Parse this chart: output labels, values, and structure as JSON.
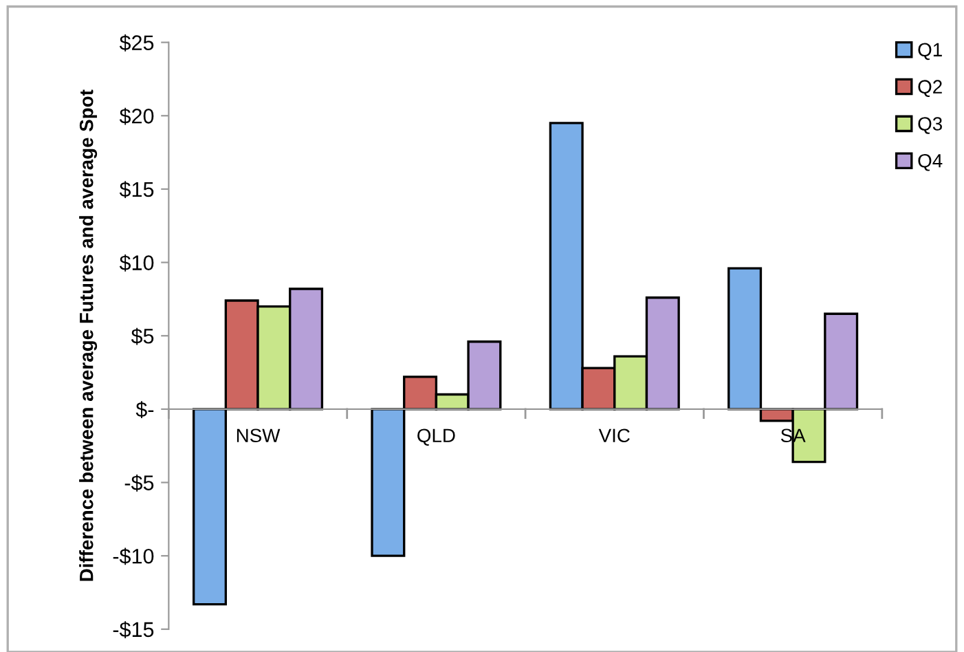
{
  "chart_data": {
    "type": "bar",
    "ylabel": "Difference between average Futures and average Spot",
    "categories": [
      "NSW",
      "QLD",
      "VIC",
      "SA"
    ],
    "series": [
      {
        "name": "Q1",
        "color": "#7aaee8",
        "values": [
          -13.3,
          -10.0,
          19.5,
          9.6
        ]
      },
      {
        "name": "Q2",
        "color": "#cd6660",
        "values": [
          7.4,
          2.2,
          2.8,
          -0.8
        ]
      },
      {
        "name": "Q3",
        "color": "#c8e68a",
        "values": [
          7.0,
          1.0,
          3.6,
          -3.6
        ]
      },
      {
        "name": "Q4",
        "color": "#b6a0d8",
        "values": [
          8.2,
          4.6,
          7.6,
          6.5
        ]
      }
    ],
    "ylim": [
      -15,
      25
    ],
    "yticks": [
      {
        "value": -15,
        "label": "-$15"
      },
      {
        "value": -10,
        "label": "-$10"
      },
      {
        "value": -5,
        "label": "-$5"
      },
      {
        "value": 0,
        "label": "$-"
      },
      {
        "value": 5,
        "label": "$5"
      },
      {
        "value": 10,
        "label": "$10"
      },
      {
        "value": 15,
        "label": "$15"
      },
      {
        "value": 20,
        "label": "$20"
      },
      {
        "value": 25,
        "label": "$25"
      }
    ],
    "grid": false,
    "legend": "top right"
  }
}
